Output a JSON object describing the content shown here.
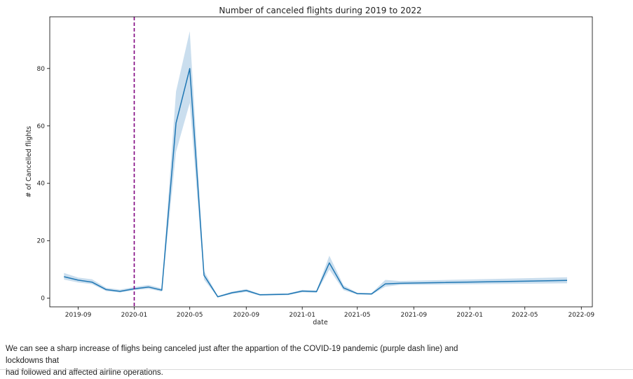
{
  "chart_data": {
    "type": "line",
    "title": "Number of canceled flights during 2019 to 2022",
    "xlabel": "date",
    "ylabel": "# of Cancelled flights",
    "x_ticks": [
      "2019-09",
      "2020-01",
      "2020-05",
      "2020-09",
      "2021-01",
      "2021-05",
      "2021-09",
      "2022-01",
      "2022-05",
      "2022-09"
    ],
    "y_ticks": [
      0,
      20,
      40,
      60,
      80
    ],
    "xlim": [
      "2019-07-01",
      "2022-09-25"
    ],
    "ylim": [
      -3,
      98
    ],
    "series": [
      {
        "color": "#1f77b4",
        "band_color": "#a6c8e2",
        "points": [
          {
            "date": "2019-08-01",
            "y": 7.5,
            "lo": 6.5,
            "hi": 8.8
          },
          {
            "date": "2019-09-01",
            "y": 6.3,
            "lo": 5.5,
            "hi": 7.2
          },
          {
            "date": "2019-10-01",
            "y": 5.6,
            "lo": 4.9,
            "hi": 6.6
          },
          {
            "date": "2019-11-01",
            "y": 3.0,
            "lo": 2.5,
            "hi": 3.6
          },
          {
            "date": "2019-12-01",
            "y": 2.4,
            "lo": 2.0,
            "hi": 3.0
          },
          {
            "date": "2020-01-01",
            "y": 3.3,
            "lo": 2.8,
            "hi": 3.9
          },
          {
            "date": "2020-02-01",
            "y": 3.9,
            "lo": 3.3,
            "hi": 4.6
          },
          {
            "date": "2020-03-01",
            "y": 2.8,
            "lo": 2.3,
            "hi": 3.4
          },
          {
            "date": "2020-04-01",
            "y": 61,
            "lo": 51,
            "hi": 72
          },
          {
            "date": "2020-05-01",
            "y": 80,
            "lo": 68,
            "hi": 93
          },
          {
            "date": "2020-06-01",
            "y": 8,
            "lo": 6.5,
            "hi": 9.5
          },
          {
            "date": "2020-07-01",
            "y": 0.5,
            "lo": 0.3,
            "hi": 0.8
          },
          {
            "date": "2020-08-01",
            "y": 1.9,
            "lo": 1.5,
            "hi": 2.3
          },
          {
            "date": "2020-09-01",
            "y": 2.7,
            "lo": 2.2,
            "hi": 3.2
          },
          {
            "date": "2020-10-01",
            "y": 1.2,
            "lo": 0.9,
            "hi": 1.5
          },
          {
            "date": "2020-11-01",
            "y": 1.3,
            "lo": 1.0,
            "hi": 1.6
          },
          {
            "date": "2020-12-01",
            "y": 1.4,
            "lo": 1.1,
            "hi": 1.7
          },
          {
            "date": "2021-01-01",
            "y": 2.5,
            "lo": 2.1,
            "hi": 2.9
          },
          {
            "date": "2021-02-01",
            "y": 2.3,
            "lo": 1.9,
            "hi": 2.7
          },
          {
            "date": "2021-03-01",
            "y": 12.3,
            "lo": 10,
            "hi": 14.8
          },
          {
            "date": "2021-04-01",
            "y": 3.6,
            "lo": 2.8,
            "hi": 4.5
          },
          {
            "date": "2021-05-01",
            "y": 1.6,
            "lo": 1.3,
            "hi": 1.9
          },
          {
            "date": "2021-06-01",
            "y": 1.5,
            "lo": 1.2,
            "hi": 1.8
          },
          {
            "date": "2021-07-01",
            "y": 5.0,
            "lo": 4.0,
            "hi": 6.4
          },
          {
            "date": "2021-08-01",
            "y": 5.2,
            "lo": 4.6,
            "hi": 6.0
          },
          {
            "date": "2022-08-01",
            "y": 6.2,
            "lo": 5.2,
            "hi": 7.3
          }
        ]
      }
    ],
    "marker_line": {
      "date": "2020-01-01",
      "color": "#800080",
      "style": "dashed"
    },
    "grid": false
  },
  "caption": {
    "line1": "We can see a sharp increase of flighs being canceled just after the appartion of the COVID-19 pandemic (purple dash line) and lockdowns that",
    "line2": "had followed and affected airline operations."
  }
}
